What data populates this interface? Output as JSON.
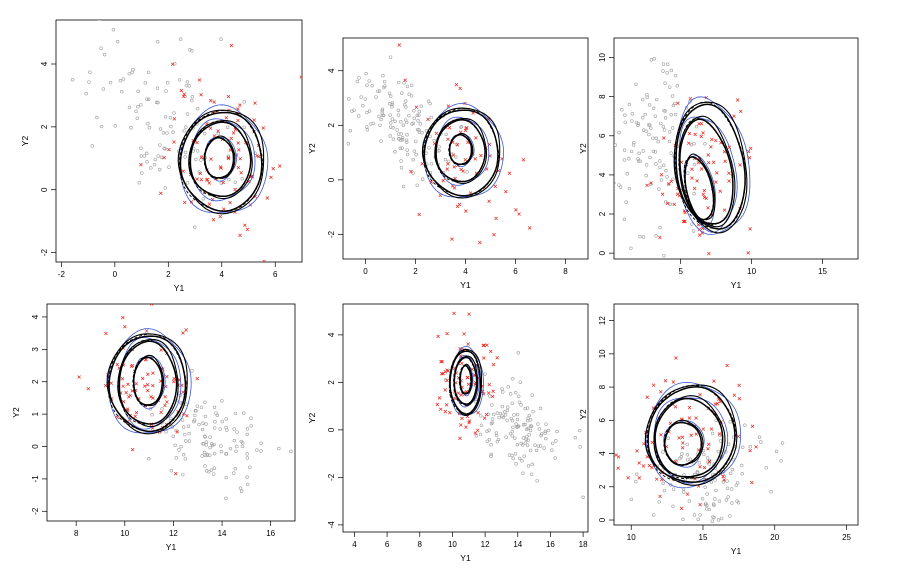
{
  "colors": {
    "grey_points": "#a0a0a0",
    "red_points": "#e8281e",
    "contour_solid": "#000000",
    "contour_dashed": "#000000",
    "contour_blue": "#3a55d6"
  },
  "chart_data": [
    {
      "type": "scatter",
      "xlabel": "Y1",
      "ylabel": "Y2",
      "xticks": [
        "-2",
        "0",
        "2",
        "4",
        "6"
      ],
      "yticks": [
        "-2",
        "0",
        "2",
        "4"
      ],
      "xticks_v": [
        -2,
        0,
        2,
        4,
        6
      ],
      "yticks_v": [
        -2,
        0,
        2,
        4
      ],
      "xlim": [
        -2.2,
        7.0
      ],
      "ylim": [
        -2.3,
        5.4
      ],
      "grey_center": [
        1.6,
        2.3
      ],
      "grey_spread": [
        1.4,
        1.3
      ],
      "grey_corr": -0.35,
      "grey_n": 110,
      "red_center": [
        4.0,
        1.2
      ],
      "red_spread": [
        1.1,
        1.3
      ],
      "red_corr": -0.2,
      "red_n": 95,
      "contours": [
        {
          "cx": 3.9,
          "cy": 1.0,
          "rx": 0.55,
          "ry": 0.65,
          "tilt": 0.0
        },
        {
          "cx": 3.95,
          "cy": 0.95,
          "rx": 1.15,
          "ry": 1.2,
          "tilt": 0.0
        },
        {
          "cx": 4.0,
          "cy": 0.9,
          "rx": 1.55,
          "ry": 1.6,
          "tilt": 0.0
        }
      ],
      "grid": false
    },
    {
      "type": "scatter",
      "xlabel": "Y1",
      "ylabel": "Y2",
      "xticks": [
        "0",
        "2",
        "4",
        "6",
        "8"
      ],
      "yticks": [
        "-2",
        "0",
        "2",
        "4"
      ],
      "xticks_v": [
        0,
        2,
        4,
        6,
        8
      ],
      "yticks_v": [
        -2,
        0,
        2,
        4
      ],
      "xlim": [
        -0.9,
        8.9
      ],
      "ylim": [
        -2.9,
        5.2
      ],
      "grey_center": [
        1.6,
        2.0
      ],
      "grey_spread": [
        1.1,
        1.0
      ],
      "grey_corr": -0.55,
      "grey_n": 140,
      "red_center": [
        3.8,
        1.0
      ],
      "red_spread": [
        1.0,
        1.3
      ],
      "red_corr": -0.3,
      "red_n": 70,
      "contours": [
        {
          "cx": 3.8,
          "cy": 1.1,
          "rx": 0.45,
          "ry": 0.55,
          "tilt": 0.0
        },
        {
          "cx": 3.8,
          "cy": 1.05,
          "rx": 1.0,
          "ry": 1.15,
          "tilt": 0.0
        },
        {
          "cx": 3.85,
          "cy": 1.0,
          "rx": 1.5,
          "ry": 1.6,
          "tilt": 0.0
        }
      ],
      "grid": false
    },
    {
      "type": "scatter",
      "xlabel": "Y1",
      "ylabel": "Y2",
      "xticks": [
        "5",
        "10",
        "15"
      ],
      "yticks": [
        "0",
        "2",
        "4",
        "6",
        "8",
        "10"
      ],
      "xticks_v": [
        5,
        10,
        15
      ],
      "yticks_v": [
        0,
        2,
        4,
        6,
        8,
        10
      ],
      "xlim": [
        0.3,
        17.5
      ],
      "ylim": [
        -0.3,
        11.0
      ],
      "grey_center": [
        3.0,
        5.5
      ],
      "grey_spread": [
        1.6,
        2.2
      ],
      "grey_corr": 0.0,
      "grey_n": 120,
      "red_center": [
        6.5,
        4.0
      ],
      "red_spread": [
        1.8,
        2.3
      ],
      "red_corr": 0.2,
      "red_n": 85,
      "contours": [
        {
          "cx": 6.3,
          "cy": 3.3,
          "rx": 0.9,
          "ry": 1.7,
          "tilt": 0.35
        },
        {
          "cx": 6.8,
          "cy": 4.1,
          "rx": 1.8,
          "ry": 2.8,
          "tilt": 0.3
        },
        {
          "cx": 7.1,
          "cy": 4.4,
          "rx": 2.4,
          "ry": 3.3,
          "tilt": 0.28
        }
      ],
      "grid": false
    },
    {
      "type": "scatter",
      "xlabel": "Y1",
      "ylabel": "Y2",
      "xticks": [
        "8",
        "10",
        "12",
        "14",
        "16"
      ],
      "yticks": [
        "-2",
        "-1",
        "0",
        "1",
        "2",
        "3",
        "4"
      ],
      "xticks_v": [
        8,
        10,
        12,
        14,
        16
      ],
      "yticks_v": [
        -2,
        -1,
        0,
        1,
        2,
        3,
        4
      ],
      "xlim": [
        6.8,
        17.0
      ],
      "ylim": [
        -2.3,
        4.4
      ],
      "grey_center": [
        13.6,
        0.3
      ],
      "grey_spread": [
        1.2,
        0.8
      ],
      "grey_corr": -0.3,
      "grey_n": 120,
      "red_center": [
        10.8,
        2.0
      ],
      "red_spread": [
        1.1,
        0.9
      ],
      "red_corr": -0.1,
      "red_n": 85,
      "contours": [
        {
          "cx": 10.95,
          "cy": 2.0,
          "rx": 0.6,
          "ry": 0.75,
          "tilt": 0.0
        },
        {
          "cx": 10.95,
          "cy": 1.95,
          "rx": 1.2,
          "ry": 1.3,
          "tilt": 0.0
        },
        {
          "cx": 10.95,
          "cy": 1.95,
          "rx": 1.6,
          "ry": 1.5,
          "tilt": 0.0
        }
      ],
      "grid": false
    },
    {
      "type": "scatter",
      "xlabel": "Y1",
      "ylabel": "Y2",
      "xticks": [
        "4",
        "6",
        "8",
        "10",
        "12",
        "14",
        "16",
        "18"
      ],
      "yticks": [
        "-4",
        "-2",
        "0",
        "2",
        "4"
      ],
      "xticks_v": [
        4,
        6,
        8,
        10,
        12,
        14,
        16,
        18
      ],
      "yticks_v": [
        -4,
        -2,
        0,
        2,
        4
      ],
      "xlim": [
        3.3,
        18.3
      ],
      "ylim": [
        -4.3,
        5.3
      ],
      "grey_center": [
        14.0,
        0.0
      ],
      "grey_spread": [
        1.4,
        1.0
      ],
      "grey_corr": -0.4,
      "grey_n": 130,
      "red_center": [
        10.8,
        2.0
      ],
      "red_spread": [
        0.9,
        1.0
      ],
      "red_corr": 0.0,
      "red_n": 80,
      "contours": [
        {
          "cx": 10.8,
          "cy": 2.1,
          "rx": 0.35,
          "ry": 0.6,
          "tilt": 0.0
        },
        {
          "cx": 10.8,
          "cy": 2.05,
          "rx": 0.7,
          "ry": 1.0,
          "tilt": 0.0
        },
        {
          "cx": 10.8,
          "cy": 2.0,
          "rx": 0.95,
          "ry": 1.35,
          "tilt": 0.0
        }
      ],
      "grid": false
    },
    {
      "type": "scatter",
      "xlabel": "Y1",
      "ylabel": "Y2",
      "xticks": [
        "10",
        "15",
        "20",
        "25"
      ],
      "yticks": [
        "0",
        "2",
        "4",
        "6",
        "8",
        "10",
        "12"
      ],
      "xticks_v": [
        10,
        15,
        20,
        25
      ],
      "yticks_v": [
        0,
        2,
        4,
        6,
        8,
        10,
        12
      ],
      "xlim": [
        8.8,
        25.8
      ],
      "ylim": [
        -0.3,
        13.0
      ],
      "grey_center": [
        15.0,
        2.3
      ],
      "grey_spread": [
        2.0,
        1.5
      ],
      "grey_corr": 0.1,
      "grey_n": 120,
      "red_center": [
        13.5,
        4.5
      ],
      "red_spread": [
        2.2,
        2.3
      ],
      "red_corr": 0.2,
      "red_n": 85,
      "contours": [
        {
          "cx": 13.6,
          "cy": 4.6,
          "rx": 1.3,
          "ry": 1.3,
          "tilt": 0.4
        },
        {
          "cx": 14.0,
          "cy": 4.9,
          "rx": 2.4,
          "ry": 2.4,
          "tilt": 0.35
        },
        {
          "cx": 14.2,
          "cy": 5.1,
          "rx": 3.1,
          "ry": 2.9,
          "tilt": 0.3
        }
      ],
      "grid": false
    }
  ]
}
